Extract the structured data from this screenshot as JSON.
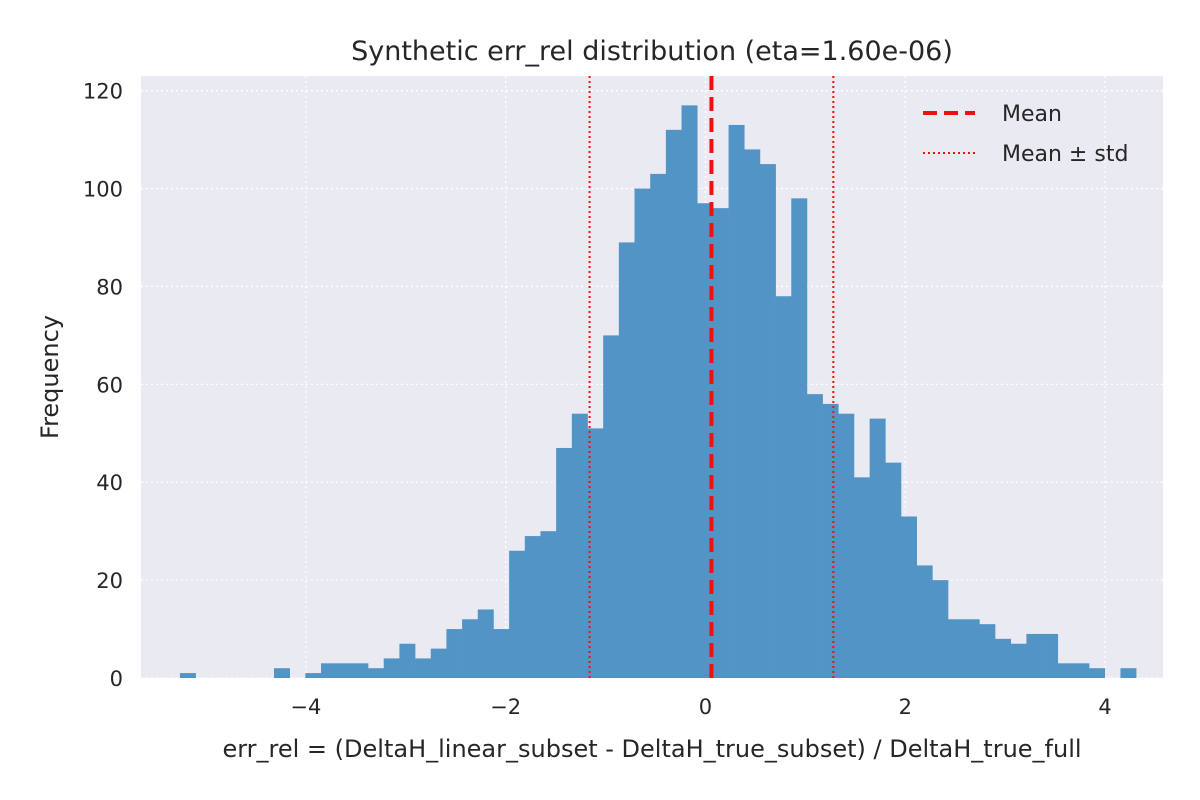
{
  "chart_data": {
    "type": "bar",
    "title": "Synthetic err_rel distribution (eta=1.60e-06)",
    "xlabel": "err_rel = (DeltaH_linear_subset - DeltaH_true_subset) / DeltaH_true_full",
    "ylabel": "Frequency",
    "xlim": [
      -5.65,
      4.58
    ],
    "ylim": [
      0,
      123
    ],
    "x_ticks": [
      -4,
      -2,
      0,
      2,
      4
    ],
    "x_tick_labels": [
      "−4",
      "−2",
      "0",
      "2",
      "4"
    ],
    "y_ticks": [
      0,
      20,
      40,
      60,
      80,
      100,
      120
    ],
    "y_tick_labels": [
      "0",
      "20",
      "40",
      "60",
      "80",
      "100",
      "120"
    ],
    "bin_start": -5.26,
    "bin_width": 0.1569,
    "counts": [
      1,
      0,
      0,
      0,
      0,
      0,
      2,
      0,
      1,
      3,
      3,
      3,
      2,
      4,
      7,
      4,
      6,
      10,
      12,
      14,
      10,
      26,
      29,
      30,
      47,
      54,
      51,
      70,
      89,
      100,
      103,
      112,
      117,
      97,
      96,
      113,
      108,
      105,
      78,
      98,
      58,
      56,
      54,
      41,
      53,
      44,
      33,
      23,
      20,
      12,
      12,
      11,
      8,
      7,
      9,
      9,
      3,
      3,
      2,
      0,
      2
    ],
    "mean": 0.06,
    "mean_minus_std": -1.16,
    "mean_plus_std": 1.28,
    "legend": [
      {
        "label": "Mean",
        "style": "dashed"
      },
      {
        "label": "Mean ± std",
        "style": "dotted"
      }
    ],
    "legend_position": "top-right",
    "grid": true,
    "colors": {
      "bar": "#5294c5",
      "mean_line": "#f01010",
      "std_line": "#f01010",
      "plot_bg": "#eaeaf2",
      "grid": "#ffffff"
    }
  }
}
